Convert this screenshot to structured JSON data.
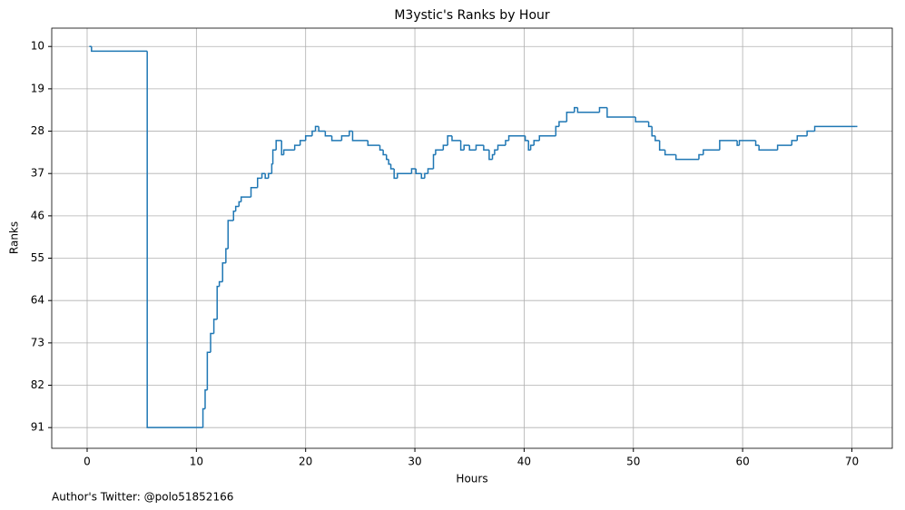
{
  "chart_data": {
    "type": "step",
    "title": "M3ystic's Ranks by Hour",
    "xlabel": "Hours",
    "ylabel": "Ranks",
    "footer": "Author's Twitter: @polo51852166",
    "series": [
      {
        "name": "Ranks",
        "color": "#1f77b4",
        "x": [
          0.2,
          0.4,
          5.5,
          10.6,
          10.8,
          11.0,
          11.3,
          11.6,
          11.9,
          12.1,
          12.4,
          12.7,
          12.9,
          13.4,
          13.6,
          13.9,
          14.1,
          15.0,
          15.6,
          16.0,
          16.3,
          16.6,
          16.9,
          17.0,
          17.3,
          17.8,
          18.0,
          19.0,
          19.5,
          20.0,
          20.6,
          20.9,
          21.2,
          21.8,
          22.4,
          23.3,
          24.0,
          24.3,
          25.7,
          26.8,
          27.1,
          27.4,
          27.6,
          27.8,
          28.1,
          28.4,
          29.7,
          30.1,
          30.6,
          30.9,
          31.2,
          31.7,
          31.9,
          32.6,
          33.0,
          33.4,
          34.2,
          34.5,
          35.0,
          35.6,
          36.3,
          36.8,
          37.1,
          37.3,
          37.6,
          38.3,
          38.6,
          40.1,
          40.4,
          40.6,
          40.9,
          41.4,
          42.9,
          43.2,
          43.9,
          44.6,
          44.9,
          46.9,
          47.6,
          50.2,
          51.4,
          51.7,
          52.0,
          52.4,
          52.9,
          53.9,
          56.0,
          56.4,
          57.9,
          59.5,
          59.7,
          61.2,
          61.5,
          63.2,
          64.5,
          65.0,
          65.9,
          66.6,
          70.3,
          70.5
        ],
        "values": [
          10,
          11,
          91,
          87,
          83,
          75,
          71,
          68,
          61,
          60,
          56,
          53,
          47,
          45,
          44,
          43,
          42,
          40,
          38,
          37,
          38,
          37,
          35,
          32,
          30,
          33,
          32,
          31,
          30,
          29,
          28,
          27,
          28,
          29,
          30,
          29,
          28,
          30,
          31,
          32,
          33,
          34,
          35,
          36,
          38,
          37,
          36,
          37,
          38,
          37,
          36,
          33,
          32,
          31,
          29,
          30,
          32,
          31,
          32,
          31,
          32,
          34,
          33,
          32,
          31,
          30,
          29,
          30,
          32,
          31,
          30,
          29,
          27,
          26,
          24,
          23,
          24,
          23,
          25,
          26,
          27,
          29,
          30,
          32,
          33,
          34,
          33,
          32,
          30,
          31,
          30,
          31,
          32,
          31,
          30,
          29,
          28,
          27,
          27,
          27
        ]
      }
    ],
    "xlim": [
      -3.24,
      73.7
    ],
    "ylim": [
      95.4,
      6.1
    ],
    "xticks": [
      0,
      10,
      20,
      30,
      40,
      50,
      60,
      70
    ],
    "yticks": [
      10,
      19,
      28,
      37,
      46,
      55,
      64,
      73,
      82,
      91
    ],
    "grid": true
  }
}
